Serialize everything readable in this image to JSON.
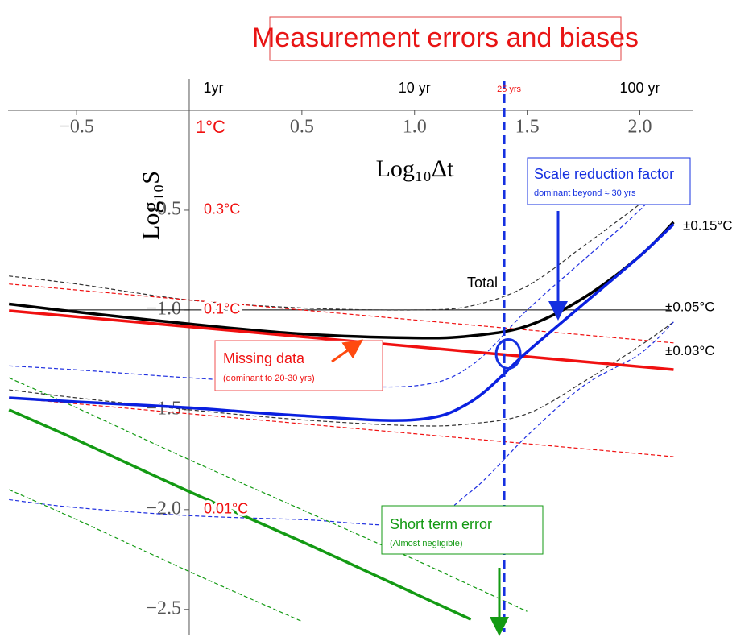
{
  "chart_data": {
    "type": "line",
    "title": "Measurement errors and biases",
    "x_label": "Log₁₀Δt",
    "y_label": "Log₁₀S",
    "xlim": [
      -0.84,
      2.27
    ],
    "ylim": [
      -2.63,
      0
    ],
    "xticks": [
      {
        "value": -0.5,
        "label": "−0.5"
      },
      0.5,
      {
        "value": 1.0,
        "label": "1.0"
      },
      1.5,
      {
        "value": 2.0,
        "label": "2.0"
      }
    ],
    "yticks": [
      {
        "value": -0.5,
        "label": "−0.5"
      },
      {
        "value": -1.0,
        "label": "−1.0"
      },
      {
        "value": -1.5,
        "label": "−1.5"
      },
      {
        "value": -2.0,
        "label": "−2.0"
      },
      {
        "value": -2.5,
        "label": "−2.5"
      }
    ],
    "top_xticks": [
      {
        "value": 0,
        "label": "1yr"
      },
      {
        "value": 1,
        "label": "10 yr"
      },
      {
        "value": 2,
        "label": "100 yr"
      }
    ],
    "red_yticks": [
      {
        "value": 0,
        "label": "1°C"
      },
      {
        "value": -0.5,
        "label": "0.3°C"
      },
      {
        "value": -1.0,
        "label": "0.1°C"
      },
      {
        "value": -2.0,
        "label": "0.01°C"
      }
    ],
    "marker_line": {
      "value": 1.398,
      "label": "25 yrs",
      "color": "#1530e0"
    },
    "levels": [
      {
        "value": -0.58,
        "label": "±0.15°C",
        "line": false
      },
      {
        "value": -1.0,
        "label": "±0.05°C",
        "line": true
      },
      {
        "value": -1.22,
        "label": "±0.03°C",
        "line": true
      }
    ],
    "x": [
      -0.8,
      -0.5,
      0,
      0.5,
      1.0,
      1.25,
      1.5,
      1.75,
      2.0,
      2.15
    ],
    "series": [
      {
        "name": "Total",
        "color": "#000000",
        "values": [
          -0.97,
          -1.01,
          -1.07,
          -1.12,
          -1.14,
          -1.13,
          -1.08,
          -0.94,
          -0.73,
          -0.56
        ]
      },
      {
        "name": "Missing data",
        "note": "(dominant to 20-30 yrs)",
        "color": "#f01010",
        "values": [
          -1.004,
          -1.034,
          -1.084,
          -1.134,
          -1.184,
          -1.209,
          -1.234,
          -1.259,
          -1.284,
          -1.299
        ]
      },
      {
        "name": "Scale reduction factor",
        "note": "dominant beyond ≈ 30 yrs",
        "color": "#0a20e0",
        "values": [
          -1.44,
          -1.46,
          -1.49,
          -1.53,
          -1.55,
          -1.46,
          -1.21,
          -0.97,
          -0.73,
          -0.57
        ]
      },
      {
        "name": "Short term error",
        "note": "(Almost negligible)",
        "color": "#139a13",
        "values": [
          -1.5,
          -1.65,
          -1.91,
          -2.16,
          -2.42,
          -2.55,
          null,
          null,
          null,
          null
        ]
      },
      {
        "color": "#333333",
        "dash": true,
        "values": [
          -0.83,
          -0.87,
          -0.95,
          -0.99,
          -1.0,
          -0.98,
          -0.88,
          -0.68,
          -0.47,
          -0.33
        ]
      },
      {
        "color": "#333333",
        "dash": true,
        "values": [
          -1.4,
          -1.44,
          -1.5,
          -1.55,
          -1.58,
          -1.57,
          -1.52,
          -1.36,
          -1.18,
          -1.06
        ]
      },
      {
        "color": "#f01010",
        "dash": true,
        "values": [
          -0.87,
          -0.9,
          -0.95,
          -1.0,
          -1.05,
          -1.075,
          -1.1,
          -1.125,
          -1.15,
          -1.165
        ]
      },
      {
        "color": "#f01010",
        "dash": true,
        "values": [
          -1.44,
          -1.47,
          -1.52,
          -1.57,
          -1.62,
          -1.645,
          -1.67,
          -1.695,
          -1.72,
          -1.735
        ]
      },
      {
        "color": "#2030e0",
        "dash": true,
        "values": [
          -1.28,
          -1.3,
          -1.34,
          -1.37,
          -1.38,
          -1.28,
          -1.0,
          -0.75,
          -0.5,
          -0.31
        ]
      },
      {
        "color": "#2030e0",
        "dash": true,
        "values": [
          -1.95,
          -1.99,
          -2.03,
          -2.05,
          -2.07,
          -1.91,
          -1.63,
          -1.38,
          -1.22,
          -1.06
        ]
      },
      {
        "color": "#139a13",
        "dash": true,
        "values": [
          -1.34,
          -1.49,
          -1.75,
          -2.0,
          -2.25,
          -2.38,
          -2.51,
          null,
          null,
          null
        ]
      },
      {
        "color": "#139a13",
        "dash": true,
        "values": [
          -1.9,
          -2.05,
          -2.31,
          -2.56,
          null,
          null,
          null,
          null,
          null,
          null
        ]
      }
    ]
  }
}
